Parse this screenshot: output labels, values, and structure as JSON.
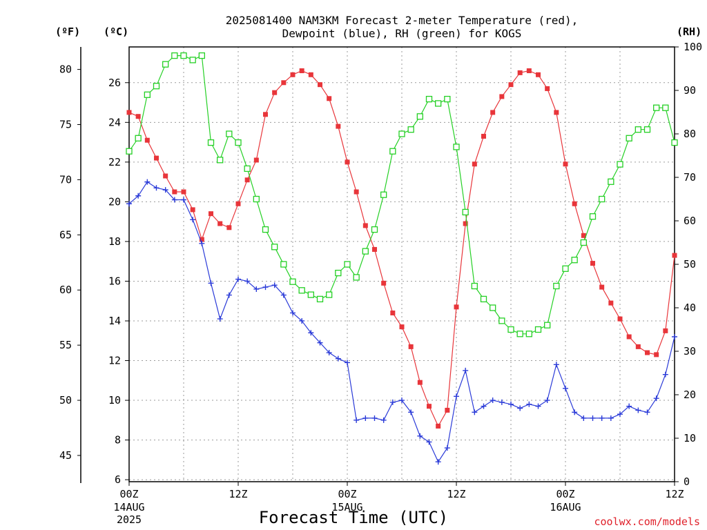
{
  "chart_data": {
    "type": "line",
    "title_line1": "2025081400 NAM3KM Forecast 2-meter Temperature (red),",
    "title_line2": "Dewpoint (blue), RH (green) for KOGS",
    "left_unit_f": "(ºF)",
    "left_unit_c": "(ºC)",
    "right_unit": "(RH)",
    "xlabel": "Forecast Time (UTC)",
    "credit": "coolwx.com/models",
    "x_ticks": [
      {
        "hour": 0,
        "label": "00Z",
        "sub1": "14AUG",
        "sub2": "2025"
      },
      {
        "hour": 12,
        "label": "12Z",
        "sub1": "",
        "sub2": ""
      },
      {
        "hour": 24,
        "label": "00Z",
        "sub1": "15AUG",
        "sub2": ""
      },
      {
        "hour": 36,
        "label": "12Z",
        "sub1": "",
        "sub2": ""
      },
      {
        "hour": 48,
        "label": "00Z",
        "sub1": "16AUG",
        "sub2": ""
      },
      {
        "hour": 60,
        "label": "12Z",
        "sub1": "",
        "sub2": ""
      }
    ],
    "x_range": [
      0,
      60
    ],
    "celsius_range": [
      5.9,
      27.8
    ],
    "rh_range": [
      0,
      100
    ],
    "celsius_ticks": [
      "6",
      "8",
      "10",
      "12",
      "14",
      "16",
      "18",
      "20",
      "22",
      "24",
      "26"
    ],
    "fahrenheit_ticks": [
      "45",
      "50",
      "55",
      "60",
      "65",
      "70",
      "75",
      "80"
    ],
    "rh_ticks": [
      "0",
      "10",
      "20",
      "30",
      "40",
      "50",
      "60",
      "70",
      "80",
      "90",
      "100"
    ],
    "series": [
      {
        "name": "Temperature",
        "color": "#e8353a",
        "marker": "filled-square",
        "values": [
          24.5,
          24.3,
          23.1,
          22.2,
          21.3,
          20.5,
          20.5,
          19.6,
          18.1,
          19.4,
          18.9,
          18.7,
          19.9,
          21.1,
          22.1,
          24.4,
          25.5,
          26.0,
          26.4,
          26.6,
          26.4,
          25.9,
          25.2,
          23.8,
          22.0,
          20.5,
          18.8,
          17.6,
          15.9,
          14.4,
          13.7,
          12.7,
          10.9,
          9.7,
          8.7,
          9.5,
          14.7,
          18.9,
          21.9,
          23.3,
          24.5,
          25.3,
          25.9,
          26.5,
          26.6,
          26.4,
          25.7,
          24.5,
          21.9,
          19.9,
          18.3,
          16.9,
          15.7,
          14.9,
          14.1,
          13.2,
          12.7,
          12.4,
          12.3,
          13.5,
          17.3
        ]
      },
      {
        "name": "Dewpoint",
        "color": "#2a3ad8",
        "marker": "plus",
        "values": [
          19.9,
          20.3,
          21.0,
          20.7,
          20.6,
          20.1,
          20.1,
          19.1,
          17.9,
          15.9,
          14.1,
          15.3,
          16.1,
          16.0,
          15.6,
          15.7,
          15.8,
          15.3,
          14.4,
          14.0,
          13.4,
          12.9,
          12.4,
          12.1,
          11.9,
          9.0,
          9.1,
          9.1,
          9.0,
          9.9,
          10.0,
          9.4,
          8.2,
          7.9,
          6.9,
          7.6,
          10.2,
          11.5,
          9.4,
          9.7,
          10.0,
          9.9,
          9.8,
          9.6,
          9.8,
          9.7,
          10.0,
          11.8,
          10.6,
          9.4,
          9.1,
          9.1,
          9.1,
          9.1,
          9.3,
          9.7,
          9.5,
          9.4,
          10.1,
          11.3,
          13.2
        ]
      },
      {
        "name": "RH",
        "color": "#24d024",
        "marker": "open-square",
        "values": [
          76,
          79,
          89,
          91,
          96,
          98,
          98,
          97,
          98,
          78,
          74,
          80,
          78,
          72,
          65,
          58,
          54,
          50,
          46,
          44,
          43,
          42,
          43,
          48,
          50,
          47,
          53,
          58,
          66,
          76,
          80,
          81,
          84,
          88,
          87,
          88,
          77,
          62,
          45,
          42,
          40,
          37,
          35,
          34,
          34,
          35,
          36,
          45,
          49,
          51,
          55,
          61,
          65,
          69,
          73,
          79,
          81,
          81,
          86,
          86,
          78
        ]
      }
    ]
  }
}
